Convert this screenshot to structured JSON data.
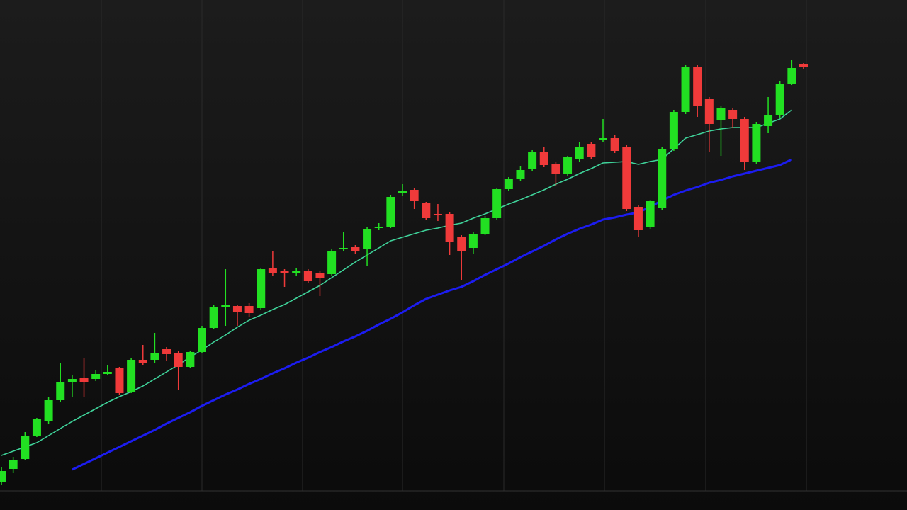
{
  "chart_data": {
    "type": "candlestick",
    "open": [
      40,
      58,
      72,
      105,
      125,
      155,
      180,
      187,
      185,
      192,
      200,
      167,
      212,
      212,
      227,
      222,
      202,
      223,
      257,
      287,
      288,
      288,
      285,
      342,
      337,
      334,
      337,
      335,
      333,
      368,
      371,
      368,
      398,
      400,
      448,
      452,
      433,
      418,
      418,
      385,
      370,
      390,
      412,
      453,
      468,
      481,
      506,
      489,
      475,
      495,
      517,
      524,
      525,
      513,
      428,
      400,
      427,
      510,
      562,
      626,
      580,
      550,
      565,
      552,
      492,
      542,
      557,
      602,
      629
    ],
    "high": [
      60,
      75,
      110,
      130,
      160,
      208,
      190,
      215,
      198,
      205,
      202,
      215,
      233,
      250,
      230,
      225,
      225,
      260,
      290,
      340,
      290,
      292,
      342,
      365,
      340,
      342,
      340,
      337,
      368,
      392,
      374,
      400,
      405,
      445,
      460,
      455,
      435,
      432,
      420,
      388,
      392,
      415,
      455,
      470,
      485,
      508,
      513,
      492,
      500,
      520,
      520,
      552,
      530,
      515,
      430,
      438,
      512,
      565,
      628,
      628,
      583,
      570,
      568,
      555,
      548,
      583,
      605,
      635,
      631
    ],
    "low": [
      35,
      52,
      70,
      103,
      122,
      152,
      160,
      160,
      182,
      190,
      163,
      165,
      204,
      208,
      210,
      170,
      200,
      221,
      255,
      260,
      260,
      272,
      283,
      330,
      315,
      330,
      320,
      302,
      330,
      365,
      362,
      345,
      395,
      398,
      444,
      425,
      410,
      408,
      360,
      325,
      362,
      388,
      410,
      450,
      465,
      478,
      484,
      458,
      472,
      492,
      496,
      520,
      504,
      422,
      385,
      397,
      424,
      507,
      559,
      555,
      505,
      500,
      540,
      480,
      488,
      532,
      554,
      600,
      623
    ],
    "close": [
      55,
      70,
      105,
      128,
      155,
      180,
      185,
      180,
      192,
      195,
      165,
      212,
      207,
      222,
      220,
      202,
      223,
      257,
      287,
      290,
      280,
      278,
      340,
      334,
      334,
      338,
      323,
      328,
      365,
      370,
      365,
      397,
      400,
      442,
      450,
      436,
      412,
      416,
      378,
      366,
      390,
      412,
      453,
      467,
      480,
      505,
      487,
      474,
      498,
      513,
      498,
      525,
      507,
      425,
      395,
      436,
      510,
      562,
      625,
      570,
      545,
      567,
      552,
      492,
      545,
      557,
      602,
      624,
      625
    ],
    "up_color": "#22e022",
    "down_color": "#f03a3a",
    "moving_averages": [
      {
        "color": "#3fd39a",
        "values": [
          77,
          83,
          89,
          95,
          105,
          115,
          125,
          134,
          143,
          152,
          160,
          167,
          175,
          185,
          195,
          205,
          216,
          226,
          237,
          247,
          258,
          268,
          275,
          283,
          290,
          299,
          308,
          317,
          328,
          339,
          350,
          360,
          370,
          380,
          385,
          390,
          395,
          398,
          402,
          405,
          412,
          418,
          425,
          432,
          438,
          445,
          452,
          460,
          467,
          475,
          482,
          490,
          491,
          492,
          488,
          492,
          495,
          510,
          525,
          530,
          535,
          538,
          540,
          540,
          540,
          546,
          552,
          565,
          null
        ]
      },
      {
        "color": "#1c1cf0",
        "values": [
          null,
          null,
          null,
          null,
          null,
          null,
          57,
          65,
          73,
          81,
          89,
          97,
          105,
          113,
          122,
          130,
          138,
          147,
          155,
          163,
          170,
          178,
          185,
          193,
          200,
          208,
          215,
          223,
          230,
          238,
          245,
          253,
          262,
          270,
          279,
          289,
          298,
          304,
          310,
          315,
          323,
          332,
          340,
          348,
          357,
          365,
          373,
          382,
          390,
          397,
          403,
          410,
          413,
          417,
          420,
          428,
          437,
          445,
          451,
          456,
          462,
          466,
          471,
          475,
          479,
          483,
          487,
          495,
          null
        ]
      }
    ],
    "ylim": [
      0,
      720
    ]
  }
}
